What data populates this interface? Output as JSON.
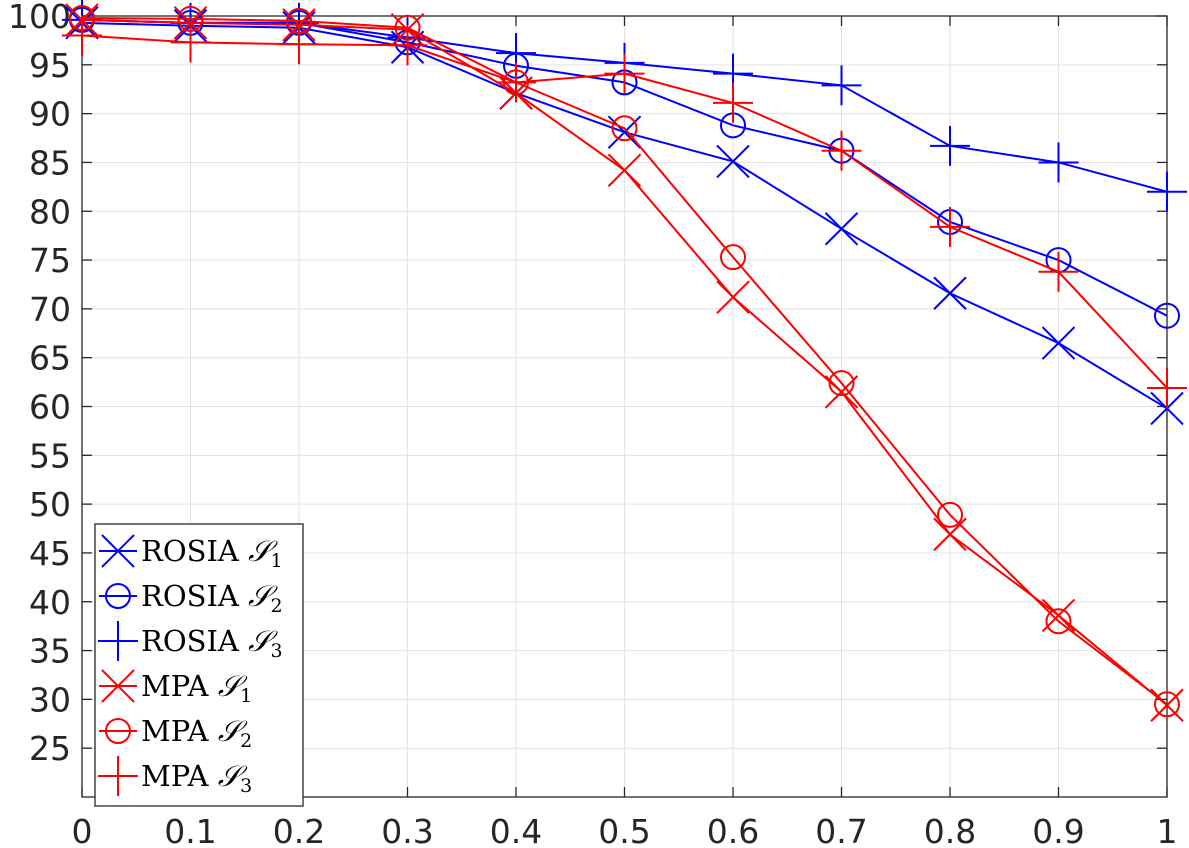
{
  "chart_data": {
    "type": "line",
    "title": "",
    "xlabel": "",
    "ylabel": "",
    "xlim": [
      0,
      1
    ],
    "ylim": [
      20,
      100
    ],
    "grid": true,
    "legend_position": "bottom-left",
    "x_ticks": [
      "0",
      "0.1",
      "0.2",
      "0.3",
      "0.4",
      "0.5",
      "0.6",
      "0.7",
      "0.8",
      "0.9",
      "1"
    ],
    "y_ticks": [
      "25",
      "30",
      "35",
      "40",
      "45",
      "50",
      "55",
      "60",
      "65",
      "70",
      "75",
      "80",
      "85",
      "90",
      "95",
      "100"
    ],
    "x": [
      0,
      0.1,
      0.2,
      0.3,
      0.4,
      0.5,
      0.6,
      0.7,
      0.8,
      0.9,
      1.0
    ],
    "series": [
      {
        "name": "ROSIA",
        "subscript": "1",
        "color": "#0000ff",
        "marker": "x",
        "values": [
          99.3,
          99.0,
          98.8,
          96.8,
          92.1,
          88.1,
          85.1,
          78.2,
          71.6,
          66.5,
          59.8
        ]
      },
      {
        "name": "ROSIA",
        "subscript": "2",
        "color": "#0000ff",
        "marker": "o",
        "values": [
          99.6,
          99.3,
          99.3,
          97.3,
          94.9,
          93.2,
          88.8,
          86.2,
          78.9,
          75.0,
          69.3
        ]
      },
      {
        "name": "ROSIA",
        "subscript": "3",
        "color": "#0000ff",
        "marker": "+",
        "values": [
          99.6,
          99.3,
          99.3,
          97.8,
          96.2,
          95.2,
          94.1,
          92.9,
          86.7,
          85.0,
          82.0
        ]
      },
      {
        "name": "MPA",
        "subscript": "1",
        "color": "#ff0000",
        "marker": "x",
        "values": [
          99.6,
          99.3,
          99.1,
          98.6,
          92.1,
          84.2,
          71.2,
          61.5,
          46.9,
          38.6,
          29.4
        ]
      },
      {
        "name": "MPA",
        "subscript": "2",
        "color": "#ff0000",
        "marker": "o",
        "values": [
          99.8,
          99.7,
          99.5,
          98.8,
          93.2,
          88.5,
          75.3,
          62.4,
          48.9,
          38.0,
          29.5
        ]
      },
      {
        "name": "MPA",
        "subscript": "3",
        "color": "#ff0000",
        "marker": "+",
        "values": [
          98.0,
          97.3,
          97.1,
          97.0,
          93.2,
          94.1,
          91.1,
          86.2,
          78.4,
          73.8,
          61.9
        ]
      }
    ],
    "legend_symbol": "𝒮"
  }
}
